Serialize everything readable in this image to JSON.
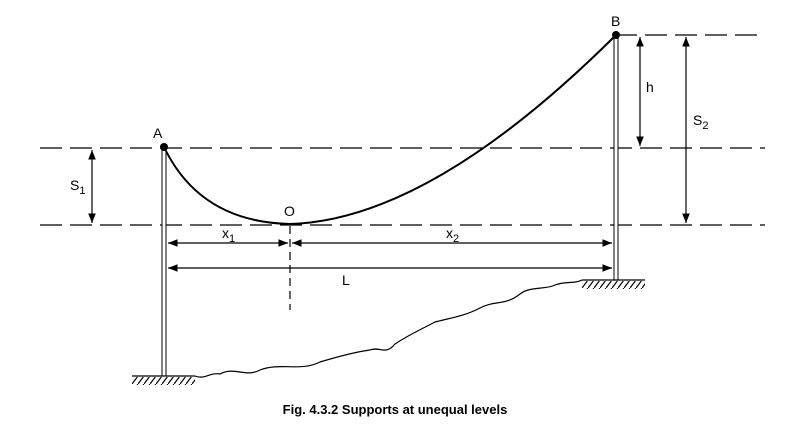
{
  "figure": {
    "points": [
      {
        "label": "A"
      },
      {
        "label": "B"
      },
      {
        "label": "O"
      }
    ],
    "dimensions": [
      {
        "text": "S",
        "sub": "1"
      },
      {
        "text": "h"
      },
      {
        "text": "S",
        "sub": "2"
      },
      {
        "text": "x",
        "sub": "1"
      },
      {
        "text": "x",
        "sub": "2"
      },
      {
        "text": "L"
      }
    ],
    "caption": "Fig. 4.3.2 Supports at unequal levels"
  }
}
